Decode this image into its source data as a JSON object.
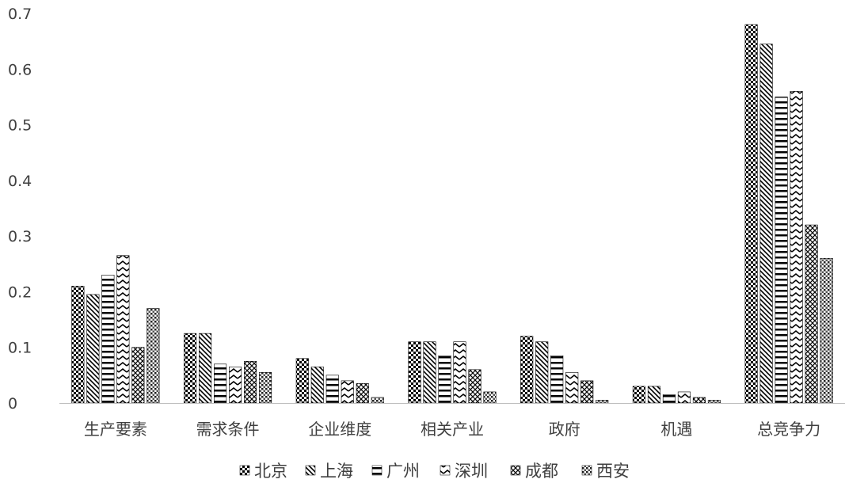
{
  "chart_data": {
    "type": "bar",
    "categories": [
      "生产要素",
      "需求条件",
      "企业维度",
      "相关产业",
      "政府",
      "机遇",
      "总竞争力"
    ],
    "series": [
      {
        "name": "北京",
        "values": [
          0.21,
          0.125,
          0.08,
          0.11,
          0.12,
          0.03,
          0.68
        ],
        "pattern": "check"
      },
      {
        "name": "上海",
        "values": [
          0.195,
          0.125,
          0.065,
          0.11,
          0.11,
          0.03,
          0.645
        ],
        "pattern": "diag"
      },
      {
        "name": "广州",
        "values": [
          0.23,
          0.07,
          0.05,
          0.085,
          0.085,
          0.015,
          0.55
        ],
        "pattern": "hlines"
      },
      {
        "name": "深圳",
        "values": [
          0.265,
          0.065,
          0.04,
          0.11,
          0.055,
          0.02,
          0.56
        ],
        "pattern": "chevron"
      },
      {
        "name": "成都",
        "values": [
          0.1,
          0.075,
          0.035,
          0.06,
          0.04,
          0.01,
          0.32
        ],
        "pattern": "cross"
      },
      {
        "name": "西安",
        "values": [
          0.17,
          0.055,
          0.01,
          0.02,
          0.005,
          0.005,
          0.26
        ],
        "pattern": "dots"
      }
    ],
    "yticks": [
      "0",
      "0.1",
      "0.2",
      "0.3",
      "0.4",
      "0.5",
      "0.6",
      "0.7"
    ],
    "ylim": [
      0,
      0.7
    ],
    "grid": false,
    "legend_position": "bottom",
    "title": "",
    "xlabel": "",
    "ylabel": ""
  }
}
